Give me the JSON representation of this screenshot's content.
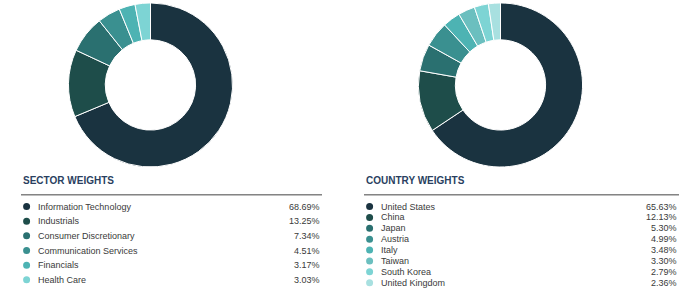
{
  "chart_data": [
    {
      "type": "pie",
      "title": "SECTOR WEIGHTS",
      "categories": [
        "Information Technology",
        "Industrials",
        "Consumer Discretionary",
        "Communication Services",
        "Financials",
        "Health Care"
      ],
      "values": [
        68.69,
        13.25,
        7.34,
        4.51,
        3.17,
        3.03
      ],
      "value_labels": [
        "68.69%",
        "13.25%",
        "7.34%",
        "4.51%",
        "3.17%",
        "3.03%"
      ],
      "colors": [
        "#1a3340",
        "#1e4d4a",
        "#2a7070",
        "#3a9090",
        "#4db3b3",
        "#7dd4d4"
      ]
    },
    {
      "type": "pie",
      "title": "COUNTRY WEIGHTS",
      "categories": [
        "United States",
        "China",
        "Japan",
        "Austria",
        "Italy",
        "Taiwan",
        "South Korea",
        "United Kingdom"
      ],
      "values": [
        65.63,
        12.13,
        5.3,
        4.99,
        3.48,
        3.3,
        2.79,
        2.36
      ],
      "value_labels": [
        "65.63%",
        "12.13%",
        "5.30%",
        "4.99%",
        "3.48%",
        "3.30%",
        "2.79%",
        "2.36%"
      ],
      "colors": [
        "#1a3340",
        "#1e4d4a",
        "#2a7070",
        "#3a9090",
        "#4db3b3",
        "#6bbfbf",
        "#7dd4d4",
        "#a8e0e0"
      ]
    }
  ]
}
